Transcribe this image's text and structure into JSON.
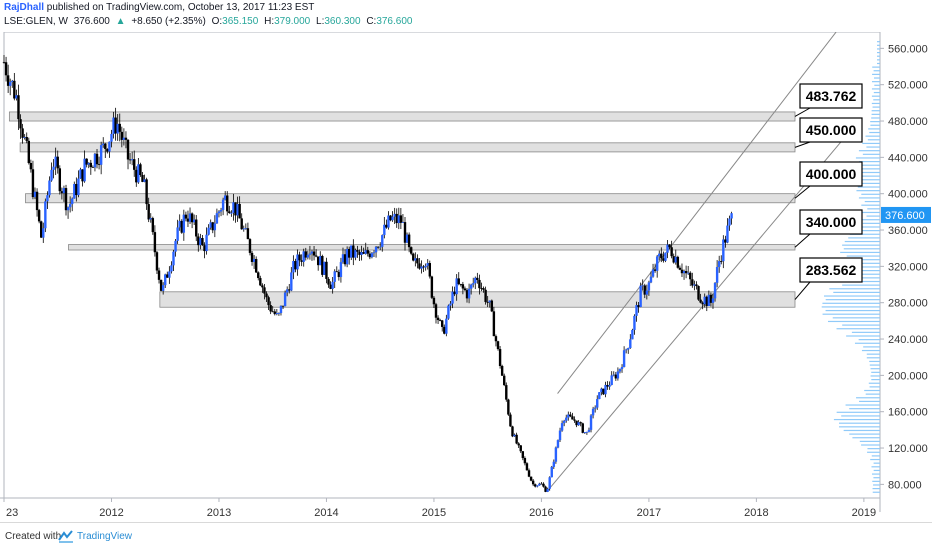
{
  "header": {
    "author": "RajDhall",
    "published": "published on TradingView.com, October 13, 2017 11:23 EST",
    "symbol": "LSE:GLEN, W",
    "last": "376.600",
    "change": "+8.650 (+2.35%)",
    "open_label": "O:",
    "open": "365.150",
    "high_label": "H:",
    "high": "379.000",
    "low_label": "L:",
    "low": "360.300",
    "close_label": "C:",
    "close": "376.600"
  },
  "footer": {
    "created_with": "Created with",
    "brand": "TradingView"
  },
  "colors": {
    "up_candle": "#2962ff",
    "down_candle": "#000000",
    "zone_fill": "#e0e0e0",
    "price_tag": "#2196f3",
    "volume_profile": "#90caf9"
  },
  "chart_data": {
    "type": "candlestick",
    "interval": "W",
    "x_ticks": [
      "23",
      "2012",
      "2013",
      "2014",
      "2015",
      "2016",
      "2017",
      "2018",
      "2019"
    ],
    "x_tick_years": [
      2011.0,
      2012,
      2013,
      2014,
      2015,
      2016,
      2017,
      2018,
      2019
    ],
    "y_ticks": [
      80,
      120,
      160,
      200,
      240,
      280,
      320,
      360,
      400,
      440,
      480,
      520,
      560
    ],
    "y_tick_labels": [
      "80.000",
      "120.000",
      "160.000",
      "200.000",
      "240.000",
      "280.000",
      "320.000",
      "360.000",
      "400.000",
      "440.000",
      "480.000",
      "520.000",
      "560.000"
    ],
    "ylim": [
      65,
      578
    ],
    "xlim": [
      2011.0,
      2019.15
    ],
    "last_price": 376.6,
    "last_price_label": "376.600",
    "path": [
      [
        2011.0,
        545
      ],
      [
        2011.12,
        505
      ],
      [
        2011.25,
        420
      ],
      [
        2011.35,
        350
      ],
      [
        2011.45,
        440
      ],
      [
        2011.6,
        385
      ],
      [
        2011.75,
        430
      ],
      [
        2011.93,
        450
      ],
      [
        2012.05,
        480
      ],
      [
        2012.15,
        440
      ],
      [
        2012.3,
        410
      ],
      [
        2012.4,
        340
      ],
      [
        2012.47,
        290
      ],
      [
        2012.6,
        350
      ],
      [
        2012.7,
        380
      ],
      [
        2012.85,
        340
      ],
      [
        2013.05,
        395
      ],
      [
        2013.15,
        385
      ],
      [
        2013.35,
        320
      ],
      [
        2013.45,
        280
      ],
      [
        2013.55,
        262
      ],
      [
        2013.7,
        320
      ],
      [
        2013.85,
        345
      ],
      [
        2014.05,
        300
      ],
      [
        2014.2,
        335
      ],
      [
        2014.35,
        330
      ],
      [
        2014.5,
        350
      ],
      [
        2014.6,
        372
      ],
      [
        2014.7,
        370
      ],
      [
        2014.8,
        320
      ],
      [
        2014.92,
        330
      ],
      [
        2015.0,
        280
      ],
      [
        2015.08,
        245
      ],
      [
        2015.2,
        300
      ],
      [
        2015.32,
        290
      ],
      [
        2015.4,
        310
      ],
      [
        2015.52,
        275
      ],
      [
        2015.62,
        210
      ],
      [
        2015.72,
        140
      ],
      [
        2015.82,
        110
      ],
      [
        2015.92,
        80
      ],
      [
        2016.0,
        80
      ],
      [
        2016.05,
        72
      ],
      [
        2016.12,
        110
      ],
      [
        2016.2,
        155
      ],
      [
        2016.32,
        150
      ],
      [
        2016.42,
        135
      ],
      [
        2016.52,
        175
      ],
      [
        2016.62,
        190
      ],
      [
        2016.72,
        205
      ],
      [
        2016.82,
        240
      ],
      [
        2016.92,
        290
      ],
      [
        2017.0,
        300
      ],
      [
        2017.1,
        330
      ],
      [
        2017.2,
        340
      ],
      [
        2017.3,
        320
      ],
      [
        2017.4,
        300
      ],
      [
        2017.5,
        285
      ],
      [
        2017.58,
        280
      ],
      [
        2017.66,
        330
      ],
      [
        2017.72,
        355
      ],
      [
        2017.78,
        377
      ]
    ],
    "zones": [
      {
        "low": 480,
        "high": 490,
        "x_start": 2011.05,
        "label": "483.762"
      },
      {
        "low": 446,
        "high": 456,
        "x_start": 2011.15,
        "label": "450.000"
      },
      {
        "low": 390,
        "high": 400,
        "x_start": 2011.2,
        "label": "400.000"
      },
      {
        "low": 338,
        "high": 344,
        "x_start": 2011.6,
        "label": "340.000"
      },
      {
        "low": 275,
        "high": 292,
        "x_start": 2012.45,
        "label": "283.562"
      }
    ],
    "channel": [
      {
        "points": [
          [
            2016.05,
            72
          ],
          [
            2018.95,
            480
          ]
        ]
      },
      {
        "points": [
          [
            2016.15,
            180
          ],
          [
            2018.95,
            610
          ]
        ]
      }
    ]
  }
}
